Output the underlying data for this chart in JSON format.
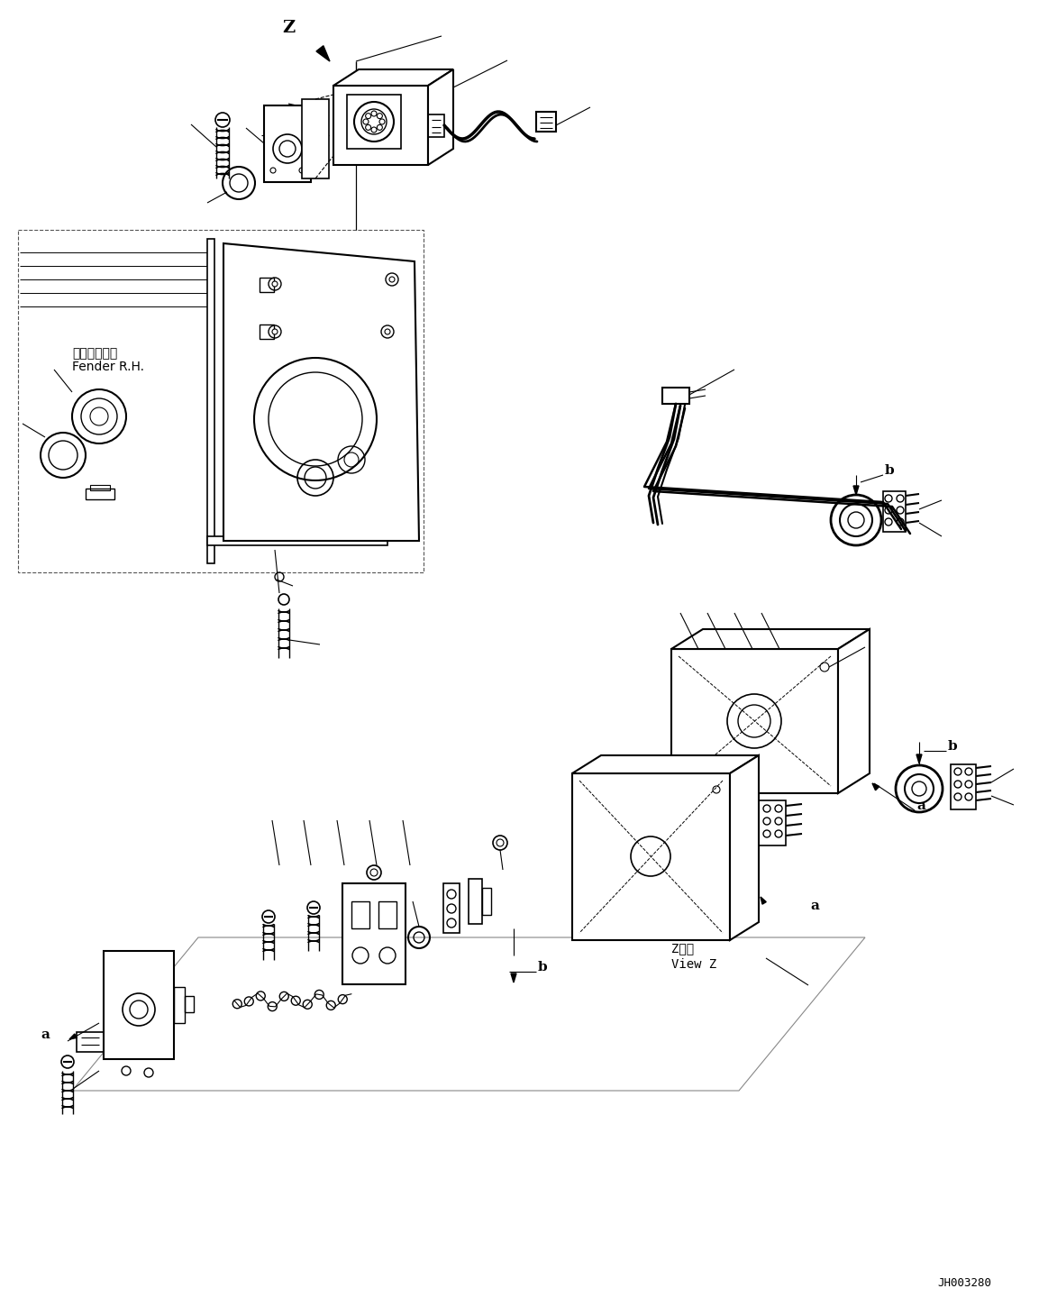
{
  "background_color": "#ffffff",
  "line_color": "#000000",
  "fig_width": 11.63,
  "fig_height": 14.6,
  "dpi": 100,
  "label_z": "Z",
  "label_a": "a",
  "label_b": "b",
  "label_view_z_jp": "Z　視",
  "label_view_z_en": "View Z",
  "label_fender_jp": "フェンダ　右",
  "label_fender_en": "Fender R.H.",
  "label_part_no": "JH003280"
}
